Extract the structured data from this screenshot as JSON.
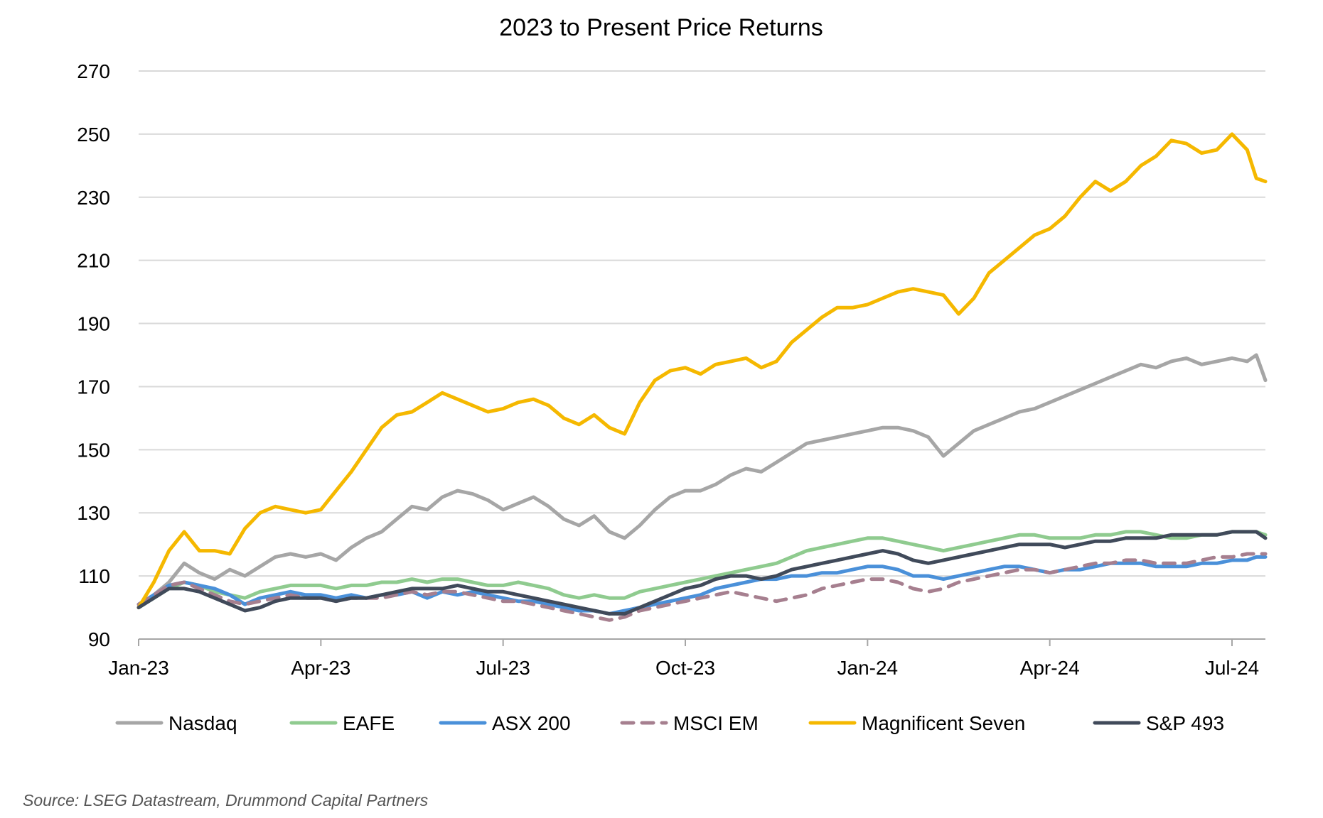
{
  "chart_data": {
    "type": "line",
    "title": "2023 to Present Price Returns",
    "xlabel": "",
    "ylabel": "",
    "ylim": [
      90,
      270
    ],
    "y_ticks": [
      90,
      110,
      130,
      150,
      170,
      190,
      210,
      230,
      250,
      270
    ],
    "x_ticks": [
      {
        "label": "Jan-23",
        "t": 0
      },
      {
        "label": "Apr-23",
        "t": 3
      },
      {
        "label": "Jul-23",
        "t": 6
      },
      {
        "label": "Oct-23",
        "t": 9
      },
      {
        "label": "Jan-24",
        "t": 12
      },
      {
        "label": "Apr-24",
        "t": 15
      },
      {
        "label": "Jul-24",
        "t": 18
      }
    ],
    "xlim": [
      0,
      18.55
    ],
    "grid": true,
    "legend_position": "bottom",
    "x": [
      0,
      0.25,
      0.5,
      0.75,
      1,
      1.25,
      1.5,
      1.75,
      2,
      2.25,
      2.5,
      2.75,
      3,
      3.25,
      3.5,
      3.75,
      4,
      4.25,
      4.5,
      4.75,
      5,
      5.25,
      5.5,
      5.75,
      6,
      6.25,
      6.5,
      6.75,
      7,
      7.25,
      7.5,
      7.75,
      8,
      8.25,
      8.5,
      8.75,
      9,
      9.25,
      9.5,
      9.75,
      10,
      10.25,
      10.5,
      10.75,
      11,
      11.25,
      11.5,
      11.75,
      12,
      12.25,
      12.5,
      12.75,
      13,
      13.25,
      13.5,
      13.75,
      14,
      14.25,
      14.5,
      14.75,
      15,
      15.25,
      15.5,
      15.75,
      16,
      16.25,
      16.5,
      16.75,
      17,
      17.25,
      17.5,
      17.75,
      18,
      18.25,
      18.4,
      18.55
    ],
    "series": [
      {
        "name": "Nasdaq",
        "color": "#a6a6a6",
        "dash": false,
        "values": [
          100,
          104,
          108,
          114,
          111,
          109,
          112,
          110,
          113,
          116,
          117,
          116,
          117,
          115,
          119,
          122,
          124,
          128,
          132,
          131,
          135,
          137,
          136,
          134,
          131,
          133,
          135,
          132,
          128,
          126,
          129,
          124,
          122,
          126,
          131,
          135,
          137,
          137,
          139,
          142,
          144,
          143,
          146,
          149,
          152,
          153,
          154,
          155,
          156,
          157,
          157,
          156,
          154,
          148,
          152,
          156,
          158,
          160,
          162,
          163,
          165,
          167,
          169,
          171,
          173,
          175,
          177,
          176,
          178,
          179,
          177,
          178,
          179,
          178,
          180,
          172
        ]
      },
      {
        "name": "EAFE",
        "color": "#8fcb8f",
        "dash": false,
        "values": [
          100,
          103,
          106,
          108,
          107,
          105,
          104,
          103,
          105,
          106,
          107,
          107,
          107,
          106,
          107,
          107,
          108,
          108,
          109,
          108,
          109,
          109,
          108,
          107,
          107,
          108,
          107,
          106,
          104,
          103,
          104,
          103,
          103,
          105,
          106,
          107,
          108,
          109,
          110,
          111,
          112,
          113,
          114,
          116,
          118,
          119,
          120,
          121,
          122,
          122,
          121,
          120,
          119,
          118,
          119,
          120,
          121,
          122,
          123,
          123,
          122,
          122,
          122,
          123,
          123,
          124,
          124,
          123,
          122,
          122,
          123,
          123,
          124,
          124,
          124,
          123
        ]
      },
      {
        "name": "ASX 200",
        "color": "#4a90d9",
        "dash": false,
        "values": [
          101,
          104,
          107,
          108,
          107,
          106,
          104,
          101,
          103,
          104,
          105,
          104,
          104,
          103,
          104,
          103,
          104,
          104,
          105,
          103,
          105,
          104,
          105,
          104,
          103,
          102,
          102,
          101,
          100,
          99,
          99,
          98,
          99,
          100,
          101,
          102,
          103,
          104,
          106,
          107,
          108,
          109,
          109,
          110,
          110,
          111,
          111,
          112,
          113,
          113,
          112,
          110,
          110,
          109,
          110,
          111,
          112,
          113,
          113,
          112,
          111,
          112,
          112,
          113,
          114,
          114,
          114,
          113,
          113,
          113,
          114,
          114,
          115,
          115,
          116,
          116
        ]
      },
      {
        "name": "MSCI EM",
        "color": "#a67f8f",
        "dash": true,
        "values": [
          101,
          104,
          107,
          108,
          106,
          104,
          102,
          101,
          102,
          103,
          104,
          103,
          103,
          102,
          103,
          103,
          103,
          104,
          105,
          104,
          105,
          105,
          104,
          103,
          102,
          102,
          101,
          100,
          99,
          98,
          97,
          96,
          97,
          99,
          100,
          101,
          102,
          103,
          104,
          105,
          104,
          103,
          102,
          103,
          104,
          106,
          107,
          108,
          109,
          109,
          108,
          106,
          105,
          106,
          108,
          109,
          110,
          111,
          112,
          112,
          111,
          112,
          113,
          114,
          114,
          115,
          115,
          114,
          114,
          114,
          115,
          116,
          116,
          117,
          117,
          117
        ]
      },
      {
        "name": "Magnificent Seven",
        "color": "#f5b800",
        "dash": false,
        "values": [
          100,
          108,
          118,
          124,
          118,
          118,
          117,
          125,
          130,
          132,
          131,
          130,
          131,
          137,
          143,
          150,
          157,
          161,
          162,
          165,
          168,
          166,
          164,
          162,
          163,
          165,
          166,
          164,
          160,
          158,
          161,
          157,
          155,
          165,
          172,
          175,
          176,
          174,
          177,
          178,
          179,
          176,
          178,
          184,
          188,
          192,
          195,
          195,
          196,
          198,
          200,
          201,
          200,
          199,
          193,
          198,
          206,
          210,
          214,
          218,
          220,
          224,
          230,
          235,
          232,
          235,
          240,
          243,
          248,
          247,
          244,
          245,
          250,
          245,
          236,
          235
        ]
      },
      {
        "name": "S&P 493",
        "color": "#404a5a",
        "dash": false,
        "values": [
          100,
          103,
          106,
          106,
          105,
          103,
          101,
          99,
          100,
          102,
          103,
          103,
          103,
          102,
          103,
          103,
          104,
          105,
          106,
          106,
          106,
          107,
          106,
          105,
          105,
          104,
          103,
          102,
          101,
          100,
          99,
          98,
          98,
          100,
          102,
          104,
          106,
          107,
          109,
          110,
          110,
          109,
          110,
          112,
          113,
          114,
          115,
          116,
          117,
          118,
          117,
          115,
          114,
          115,
          116,
          117,
          118,
          119,
          120,
          120,
          120,
          119,
          120,
          121,
          121,
          122,
          122,
          122,
          123,
          123,
          123,
          123,
          124,
          124,
          124,
          122
        ]
      }
    ],
    "legend": [
      "Nasdaq",
      "EAFE",
      "ASX 200",
      "MSCI EM",
      "Magnificent Seven",
      "S&P 493"
    ]
  },
  "source_note": "Source: LSEG Datastream, Drummond Capital Partners"
}
